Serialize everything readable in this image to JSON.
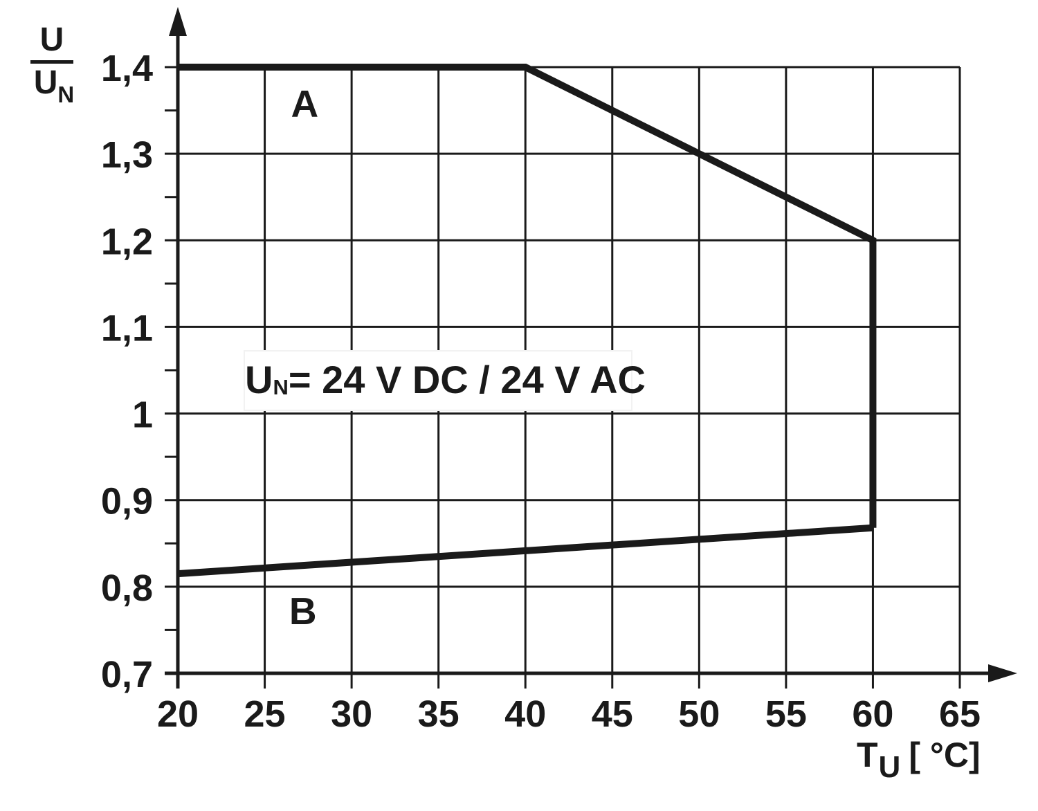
{
  "page": {
    "background": "#ffffff",
    "ink": "#1a1a1a"
  },
  "chart_data": {
    "type": "line",
    "title": "",
    "x_axis": {
      "label_base": "T",
      "label_sub": "U",
      "label_unit": "[ °C]",
      "min": 20,
      "max": 65,
      "ticks": [
        {
          "v": 20,
          "label": "20"
        },
        {
          "v": 25,
          "label": "25"
        },
        {
          "v": 30,
          "label": "30"
        },
        {
          "v": 35,
          "label": "35"
        },
        {
          "v": 40,
          "label": "40"
        },
        {
          "v": 45,
          "label": "45"
        },
        {
          "v": 50,
          "label": "50"
        },
        {
          "v": 55,
          "label": "55"
        },
        {
          "v": 60,
          "label": "60"
        },
        {
          "v": 65,
          "label": "65"
        }
      ]
    },
    "y_axis": {
      "label_num": "U",
      "label_den_base": "U",
      "label_den_sub": "N",
      "min": 0.7,
      "max": 1.4,
      "ticks": [
        {
          "v": 1.4,
          "label": "1,4"
        },
        {
          "v": 1.3,
          "label": "1,3"
        },
        {
          "v": 1.2,
          "label": "1,2"
        },
        {
          "v": 1.1,
          "label": "1,1"
        },
        {
          "v": 1.0,
          "label": "1"
        },
        {
          "v": 0.9,
          "label": "0,9"
        },
        {
          "v": 0.8,
          "label": "0,8"
        },
        {
          "v": 0.7,
          "label": "0,7"
        }
      ],
      "minor_ticks": [
        0.75,
        0.85,
        0.95,
        1.05,
        1.15,
        1.25,
        1.35
      ]
    },
    "grid": true,
    "legend_position": "none",
    "series": [
      {
        "name": "A",
        "points": [
          [
            20,
            1.4
          ],
          [
            40,
            1.4
          ],
          [
            60,
            1.2
          ],
          [
            60,
            0.868
          ]
        ]
      },
      {
        "name": "B",
        "points": [
          [
            20,
            0.815
          ],
          [
            60,
            0.868
          ]
        ]
      }
    ],
    "series_labels": [
      {
        "text": "A",
        "x": 27.3,
        "y": 1.358
      },
      {
        "text": "B",
        "x": 27.2,
        "y": 0.772
      }
    ],
    "annotation": {
      "base": "U",
      "sub": "N",
      "rest": "= 24 V DC / 24 V AC"
    }
  }
}
